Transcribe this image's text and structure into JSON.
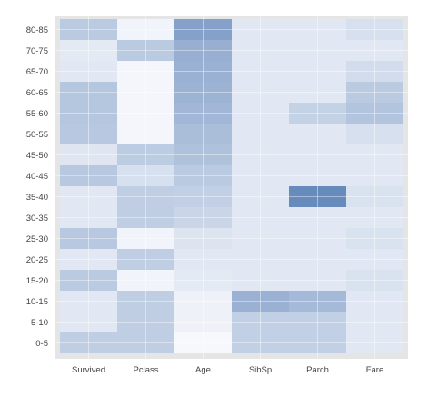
{
  "chart_data": {
    "type": "heatmap",
    "title": "",
    "xlabel": "",
    "ylabel": "",
    "x_categories": [
      "Survived",
      "Pclass",
      "Age",
      "SibSp",
      "Parch",
      "Fare"
    ],
    "y_categories": [
      "80-85",
      "70-75",
      "65-70",
      "60-65",
      "55-60",
      "50-55",
      "45-50",
      "40-45",
      "35-40",
      "30-35",
      "25-30",
      "20-25",
      "15-20",
      "10-15",
      "5-10",
      "0-5"
    ],
    "values": [
      [
        0.24,
        0.03,
        0.44,
        0.09,
        0.09,
        0.13
      ],
      [
        0.08,
        0.24,
        0.37,
        0.09,
        0.09,
        0.09
      ],
      [
        0.09,
        0.02,
        0.36,
        0.09,
        0.09,
        0.15
      ],
      [
        0.26,
        0.02,
        0.35,
        0.09,
        0.09,
        0.24
      ],
      [
        0.26,
        0.02,
        0.33,
        0.09,
        0.2,
        0.27
      ],
      [
        0.25,
        0.02,
        0.3,
        0.09,
        0.09,
        0.13
      ],
      [
        0.1,
        0.23,
        0.28,
        0.09,
        0.09,
        0.09
      ],
      [
        0.25,
        0.13,
        0.24,
        0.09,
        0.09,
        0.09
      ],
      [
        0.09,
        0.22,
        0.21,
        0.09,
        0.55,
        0.12
      ],
      [
        0.09,
        0.22,
        0.18,
        0.09,
        0.09,
        0.09
      ],
      [
        0.25,
        0.03,
        0.11,
        0.09,
        0.09,
        0.12
      ],
      [
        0.09,
        0.22,
        0.09,
        0.09,
        0.09,
        0.09
      ],
      [
        0.24,
        0.03,
        0.08,
        0.09,
        0.09,
        0.12
      ],
      [
        0.09,
        0.22,
        0.04,
        0.36,
        0.32,
        0.09
      ],
      [
        0.09,
        0.22,
        0.04,
        0.21,
        0.21,
        0.09
      ],
      [
        0.22,
        0.22,
        0.01,
        0.21,
        0.21,
        0.09
      ]
    ],
    "value_range": [
      0,
      0.6
    ],
    "colormap": {
      "low": "#f9fafd",
      "high": "#5b81b7"
    },
    "background_color": "#e5e5e5",
    "grid_color": "#ffffff",
    "colorbar": false,
    "grid": true
  }
}
